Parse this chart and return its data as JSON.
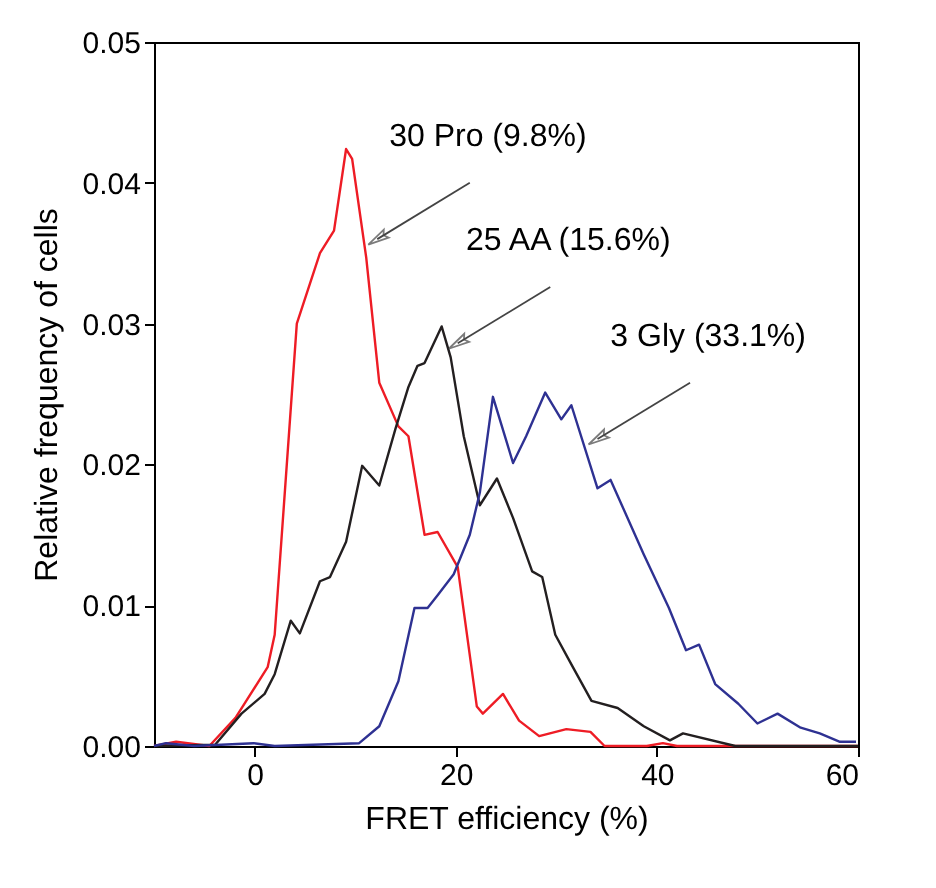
{
  "chart_data": {
    "type": "line",
    "xlabel": "FRET efficiency (%)",
    "ylabel": "Relative frequency of cells",
    "xlim": [
      -10,
      60
    ],
    "xticks": [
      0,
      20,
      40,
      60
    ],
    "ylim": [
      0,
      0.05
    ],
    "yticks": [
      {
        "value": 0,
        "label": "0.00"
      },
      {
        "value": 0.01,
        "label": "0.01"
      },
      {
        "value": 0.02,
        "label": "0.02"
      },
      {
        "value": 0.03,
        "label": "0.03"
      },
      {
        "value": 0.04,
        "label": "0.04"
      },
      {
        "value": 0.05,
        "label": "0.05"
      }
    ],
    "grid": false,
    "marker": "none",
    "line_style": "solid",
    "series": [
      {
        "color": "#ee1c25",
        "x": [
          -10,
          -7.8,
          -4.5,
          -1.9,
          1.3,
          2.0,
          4.2,
          6.5,
          7.9,
          9.1,
          9.7,
          11.1,
          12.4,
          14.3,
          15.3,
          16.9,
          18.2,
          20.2,
          22.1,
          22.7,
          24.7,
          26.3,
          28.3,
          31,
          33.4,
          34.8,
          39,
          40.6,
          42,
          60
        ],
        "values": [
          0,
          0.0003,
          0,
          0.002,
          0.0056,
          0.0079,
          0.03,
          0.035,
          0.0366,
          0.0424,
          0.0417,
          0.0347,
          0.0258,
          0.0227,
          0.022,
          0.015,
          0.0152,
          0.0127,
          0.0028,
          0.0023,
          0.0037,
          0.0018,
          0.0007,
          0.0012,
          0.001,
          0,
          0,
          0.0002,
          0,
          0
        ]
      },
      {
        "color": "#231f20",
        "x": [
          -10,
          -3.9,
          -1.3,
          1,
          2.0,
          3.6,
          4.5,
          6.5,
          7.5,
          9.1,
          10.7,
          12.4,
          14.0,
          15.3,
          16.2,
          16.9,
          18.6,
          19.5,
          20.8,
          22.4,
          24.1,
          25.7,
          27.6,
          28.6,
          29.9,
          31.5,
          33.5,
          36.1,
          38.7,
          41.3,
          42.6,
          47.8,
          60
        ],
        "values": [
          0,
          0.0001,
          0.0023,
          0.0037,
          0.0051,
          0.0089,
          0.008,
          0.0117,
          0.012,
          0.0145,
          0.0199,
          0.0185,
          0.0225,
          0.0255,
          0.027,
          0.0272,
          0.0298,
          0.0276,
          0.022,
          0.0171,
          0.019,
          0.0162,
          0.0124,
          0.012,
          0.0079,
          0.0058,
          0.0032,
          0.0027,
          0.0014,
          0.0004,
          0.0009,
          0,
          0
        ]
      },
      {
        "color": "#2e3192",
        "x": [
          -10,
          -8.8,
          -6,
          -0.1,
          2,
          10.4,
          12.4,
          14.3,
          15.9,
          17.2,
          18.2,
          19.8,
          21.4,
          22.4,
          23.7,
          25.7,
          27.0,
          28.9,
          30.5,
          31.5,
          34.1,
          35.4,
          38.7,
          41.2,
          42.9,
          44.2,
          45.8,
          48.1,
          50.0,
          52.0,
          54.3,
          56.2,
          58.2,
          59.8
        ],
        "values": [
          0,
          0.0002,
          0,
          0.0002,
          0,
          0.0002,
          0.0014,
          0.0046,
          0.0098,
          0.0098,
          0.0107,
          0.0122,
          0.015,
          0.018,
          0.0248,
          0.0201,
          0.022,
          0.0251,
          0.0232,
          0.0242,
          0.0183,
          0.0189,
          0.0136,
          0.0098,
          0.0068,
          0.0072,
          0.0044,
          0.003,
          0.0016,
          0.0023,
          0.0013,
          0.0009,
          0.0003,
          0.0003
        ]
      }
    ],
    "annotations": [
      {
        "text": "30 Pro (9.8%)",
        "x": 12.2,
        "y": 0.036
      },
      {
        "text": "25 AA (15.6%)",
        "x": 20.2,
        "y": 0.0286
      },
      {
        "text": "3 Gly (33.1%)",
        "x": 34.1,
        "y": 0.0218
      }
    ]
  }
}
